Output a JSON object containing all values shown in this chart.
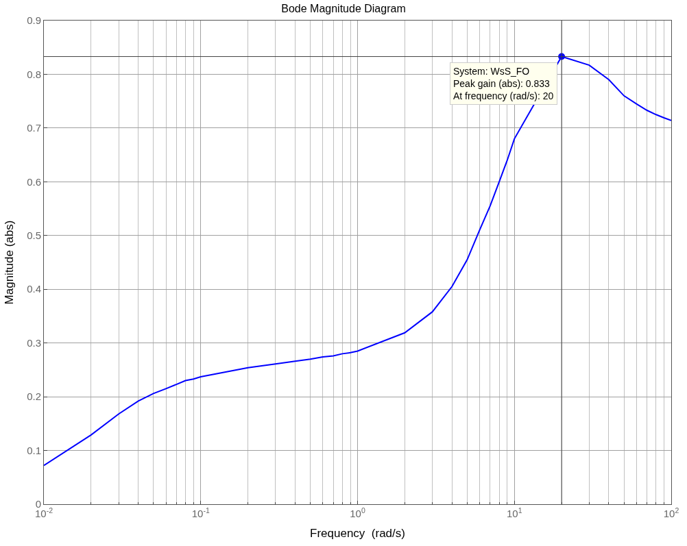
{
  "chart_data": {
    "type": "line",
    "title": "Bode Magnitude Diagram",
    "xlabel": "Frequency  (rad/s)",
    "ylabel": "Magnitude (abs)",
    "log": "x",
    "grid": true,
    "xlim": [
      0.01,
      100
    ],
    "xticks": [
      {
        "value": 0.01,
        "label": "10$^{-2}$"
      },
      {
        "value": 0.1,
        "label": "10$^{-1}$"
      },
      {
        "value": 1,
        "label": "10$^{0}$"
      },
      {
        "value": 10,
        "label": "10$^{1}$"
      },
      {
        "value": 100,
        "label": "10$^{2}$"
      }
    ],
    "ylim": [
      0,
      0.9
    ],
    "yticks": [
      0,
      0.1,
      0.2,
      0.3,
      0.4,
      0.5,
      0.6,
      0.7,
      0.8,
      0.9
    ],
    "series": [
      {
        "color": "#0000ff",
        "marker": "none",
        "x": [
          0.01,
          0.02,
          0.03,
          0.04,
          0.05,
          0.06,
          0.07,
          0.08,
          0.09,
          0.1,
          0.2,
          0.3,
          0.4,
          0.5,
          0.6,
          0.7,
          0.8,
          0.9,
          1,
          2,
          3,
          4,
          5,
          6,
          7,
          8,
          9,
          10,
          20,
          30,
          40,
          50,
          60,
          70,
          80,
          90,
          100
        ],
        "values": [
          0.072,
          0.129,
          0.168,
          0.192,
          0.206,
          0.215,
          0.223,
          0.23,
          0.233,
          0.237,
          0.254,
          0.261,
          0.266,
          0.27,
          0.274,
          0.276,
          0.28,
          0.282,
          0.285,
          0.319,
          0.358,
          0.405,
          0.455,
          0.51,
          0.555,
          0.6,
          0.64,
          0.68,
          0.833,
          0.817,
          0.79,
          0.76,
          0.745,
          0.733,
          0.725,
          0.719,
          0.714
        ]
      },
      {
        "type": "scatter",
        "color": "#0000ff",
        "marker": "circle",
        "x": [
          20
        ],
        "values": [
          0.833
        ]
      }
    ],
    "ref_lines": [
      {
        "axis": "y",
        "value": 0.833,
        "label": null,
        "color": "#404040"
      },
      {
        "axis": "x",
        "value": 20,
        "label": null,
        "color": "#404040"
      }
    ],
    "annotations": [
      {
        "text": "System: WsS_FO\nPeak gain (abs): 0.833\nAt frequency (rad/s): 20",
        "x": 20,
        "y": 0.833
      }
    ]
  }
}
